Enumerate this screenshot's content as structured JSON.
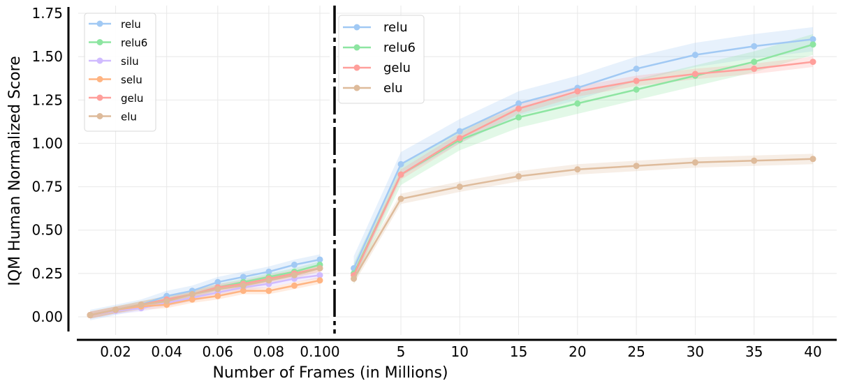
{
  "chart_data": {
    "type": "line",
    "ylabel": "IQM Human Normalized Score",
    "xlabel": "Number of Frames (in Millions)",
    "ylim": [
      -0.08,
      1.8
    ],
    "yticks": [
      "0.00",
      "0.25",
      "0.50",
      "0.75",
      "1.00",
      "1.25",
      "1.50",
      "1.75"
    ],
    "yticks_values": [
      0,
      0.25,
      0.5,
      0.75,
      1.0,
      1.25,
      1.5,
      1.75
    ],
    "grid": true,
    "panels": [
      {
        "name": "left",
        "xlim": [
          0.005,
          0.105
        ],
        "xticks": [
          "0.02",
          "0.04",
          "0.06",
          "0.08",
          "0.100"
        ],
        "xticks_values": [
          0.02,
          0.04,
          0.06,
          0.08,
          0.1
        ],
        "legend_position": "upper-left",
        "x": [
          0.01,
          0.02,
          0.03,
          0.04,
          0.05,
          0.06,
          0.07,
          0.08,
          0.09,
          0.1
        ],
        "series": [
          {
            "name": "relu",
            "color": "#a1c9f4",
            "values": [
              0.01,
              0.04,
              0.07,
              0.12,
              0.15,
              0.2,
              0.23,
              0.26,
              0.3,
              0.33
            ],
            "band": 0.03
          },
          {
            "name": "relu6",
            "color": "#8de5a1",
            "values": [
              0.01,
              0.04,
              0.07,
              0.1,
              0.13,
              0.17,
              0.2,
              0.23,
              0.26,
              0.3
            ],
            "band": 0.02
          },
          {
            "name": "silu",
            "color": "#d0bbff",
            "values": [
              0.01,
              0.035,
              0.05,
              0.08,
              0.11,
              0.14,
              0.17,
              0.19,
              0.22,
              0.24
            ],
            "band": 0.02
          },
          {
            "name": "selu",
            "color": "#ffb482",
            "values": [
              0.01,
              0.04,
              0.06,
              0.07,
              0.1,
              0.12,
              0.15,
              0.15,
              0.18,
              0.21
            ],
            "band": 0.02
          },
          {
            "name": "gelu",
            "color": "#ff9f9b",
            "values": [
              0.01,
              0.04,
              0.07,
              0.1,
              0.13,
              0.17,
              0.19,
              0.22,
              0.25,
              0.28
            ],
            "band": 0.02
          },
          {
            "name": "elu",
            "color": "#debb9b",
            "values": [
              0.01,
              0.04,
              0.07,
              0.09,
              0.13,
              0.16,
              0.18,
              0.21,
              0.24,
              0.28
            ],
            "band": 0.02
          }
        ]
      },
      {
        "name": "right",
        "xlim": [
          0.3,
          42
        ],
        "xticks": [
          "5",
          "10",
          "15",
          "20",
          "25",
          "30",
          "35",
          "40"
        ],
        "xticks_values": [
          5,
          10,
          15,
          20,
          25,
          30,
          35,
          40
        ],
        "legend_position": "upper-left",
        "x": [
          1,
          5,
          10,
          15,
          20,
          25,
          30,
          35,
          40
        ],
        "series": [
          {
            "name": "relu",
            "color": "#a1c9f4",
            "values": [
              0.28,
              0.88,
              1.07,
              1.23,
              1.32,
              1.43,
              1.51,
              1.56,
              1.6
            ],
            "band": 0.07
          },
          {
            "name": "relu6",
            "color": "#8de5a1",
            "values": [
              0.25,
              0.82,
              1.02,
              1.15,
              1.23,
              1.31,
              1.39,
              1.47,
              1.57
            ],
            "band": 0.06
          },
          {
            "name": "gelu",
            "color": "#ff9f9b",
            "values": [
              0.24,
              0.82,
              1.03,
              1.2,
              1.3,
              1.36,
              1.4,
              1.43,
              1.47
            ],
            "band": 0.03
          },
          {
            "name": "elu",
            "color": "#debb9b",
            "values": [
              0.22,
              0.68,
              0.75,
              0.81,
              0.85,
              0.87,
              0.89,
              0.9,
              0.91
            ],
            "band": 0.03
          }
        ]
      }
    ]
  }
}
